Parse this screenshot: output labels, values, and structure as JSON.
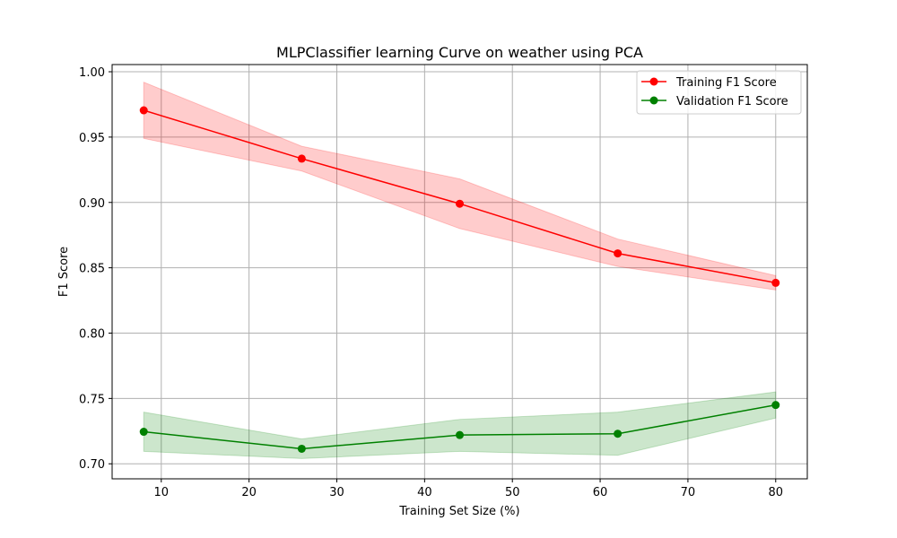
{
  "chart_data": {
    "type": "line",
    "title": "MLPClassifier learning Curve on weather using PCA",
    "xlabel": "Training Set Size (%)",
    "ylabel": "F1 Score",
    "xlim": [
      4.4,
      83.6
    ],
    "ylim": [
      0.6885,
      1.0055
    ],
    "xticks": [
      10,
      20,
      30,
      40,
      50,
      60,
      70,
      80
    ],
    "yticks": [
      0.7,
      0.75,
      0.8,
      0.85,
      0.9,
      0.95,
      1.0
    ],
    "xtick_labels": [
      "10",
      "20",
      "30",
      "40",
      "50",
      "60",
      "70",
      "80"
    ],
    "ytick_labels": [
      "0.70",
      "0.75",
      "0.80",
      "0.85",
      "0.90",
      "0.95",
      "1.00"
    ],
    "grid": true,
    "legend_position": "top-right",
    "x": [
      8,
      26,
      44,
      62,
      80
    ],
    "series": [
      {
        "name": "Training F1 Score",
        "color": "#ff0000",
        "band_color": "#ff0000",
        "values": [
          0.9705,
          0.9335,
          0.899,
          0.861,
          0.8385
        ],
        "lower": [
          0.949,
          0.924,
          0.88,
          0.851,
          0.833
        ],
        "upper": [
          0.992,
          0.943,
          0.918,
          0.872,
          0.844
        ]
      },
      {
        "name": "Validation F1 Score",
        "color": "#008000",
        "band_color": "#008000",
        "values": [
          0.7245,
          0.7115,
          0.722,
          0.723,
          0.745
        ],
        "lower": [
          0.7095,
          0.704,
          0.7095,
          0.7065,
          0.735
        ],
        "upper": [
          0.7395,
          0.719,
          0.734,
          0.7395,
          0.755
        ]
      }
    ]
  }
}
